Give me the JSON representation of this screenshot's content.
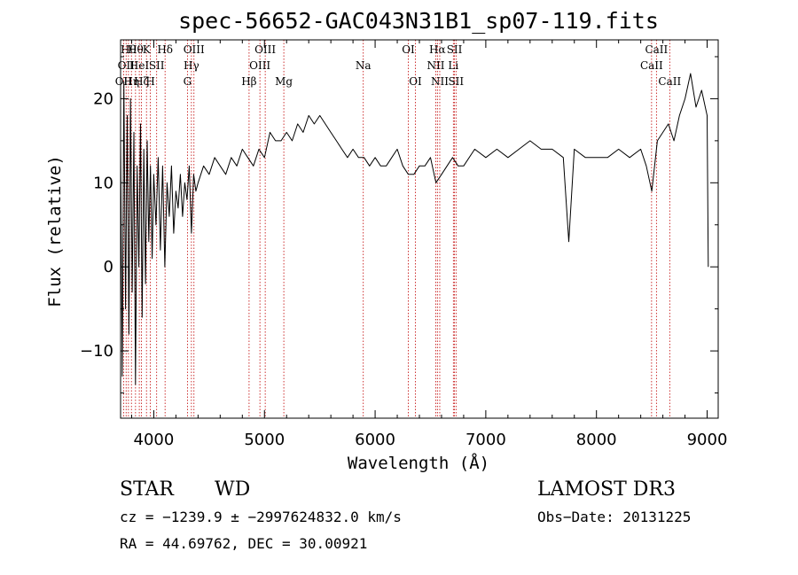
{
  "chart_data": {
    "type": "line",
    "title": "spec-56652-GAC043N31B1_sp07-119.fits",
    "xlabel": "Wavelength (Å)",
    "ylabel": "Flux (relative)",
    "xlim": [
      3700,
      9100
    ],
    "ylim": [
      -18,
      27
    ],
    "xticks": [
      4000,
      5000,
      6000,
      7000,
      8000,
      9000
    ],
    "xtick_labels": [
      "4000",
      "5000",
      "6000",
      "7000",
      "8000",
      "9000"
    ],
    "yticks": [
      -10,
      0,
      10,
      20
    ],
    "ytick_labels": [
      "−10",
      "0",
      "10",
      "20"
    ],
    "grid": false,
    "series": [
      {
        "x": [
          3700,
          3715,
          3730,
          3745,
          3760,
          3775,
          3790,
          3805,
          3820,
          3835,
          3850,
          3865,
          3880,
          3895,
          3910,
          3925,
          3940,
          3955,
          3970,
          3985,
          4000,
          4020,
          4040,
          4060,
          4080,
          4100,
          4120,
          4140,
          4160,
          4180,
          4200,
          4220,
          4240,
          4260,
          4280,
          4300,
          4320,
          4340,
          4360,
          4380,
          4400,
          4450,
          4500,
          4550,
          4600,
          4650,
          4700,
          4750,
          4800,
          4850,
          4900,
          4950,
          5000,
          5050,
          5100,
          5150,
          5200,
          5250,
          5300,
          5350,
          5400,
          5450,
          5500,
          5550,
          5600,
          5650,
          5700,
          5750,
          5800,
          5850,
          5900,
          5950,
          6000,
          6050,
          6100,
          6150,
          6200,
          6250,
          6300,
          6350,
          6400,
          6450,
          6500,
          6550,
          6600,
          6650,
          6700,
          6750,
          6800,
          6900,
          7000,
          7100,
          7200,
          7300,
          7400,
          7500,
          7600,
          7700,
          7750,
          7800,
          7900,
          8000,
          8100,
          8200,
          8300,
          8400,
          8450,
          8500,
          8550,
          8600,
          8650,
          8700,
          8750,
          8800,
          8850,
          8900,
          8950,
          9000,
          9010
        ],
        "y": [
          15,
          -13,
          22,
          -5,
          18,
          -8,
          20,
          -3,
          16,
          -14,
          12,
          0,
          17,
          -6,
          14,
          -2,
          15,
          3,
          12,
          1,
          11,
          5,
          13,
          2,
          12,
          0,
          10,
          6,
          12,
          4,
          9,
          7,
          11,
          6,
          10,
          8,
          12,
          4,
          11,
          9,
          10,
          12,
          11,
          13,
          12,
          11,
          13,
          12,
          14,
          13,
          12,
          14,
          13,
          16,
          15,
          15,
          16,
          15,
          17,
          16,
          18,
          17,
          18,
          17,
          16,
          15,
          14,
          13,
          14,
          13,
          13,
          12,
          13,
          12,
          12,
          13,
          14,
          12,
          11,
          11,
          12,
          12,
          13,
          10,
          11,
          12,
          13,
          12,
          12,
          14,
          13,
          14,
          13,
          14,
          15,
          14,
          14,
          13,
          3,
          14,
          13,
          13,
          13,
          14,
          13,
          14,
          12,
          9,
          15,
          16,
          17,
          15,
          18,
          20,
          23,
          19,
          21,
          18,
          0
        ]
      }
    ],
    "line_markers": [
      {
        "wl": 3727,
        "label": "OII",
        "row": 2
      },
      {
        "wl": 3750,
        "label": "OII",
        "row": 1
      },
      {
        "wl": 3771,
        "label": "Hθ",
        "row": 0
      },
      {
        "wl": 3798,
        "label": "Hη",
        "row": 2
      },
      {
        "wl": 3835,
        "label": "Hθ",
        "row": 0
      },
      {
        "wl": 3869,
        "label": "HeI",
        "row": 1
      },
      {
        "wl": 3889,
        "label": "Hζ",
        "row": 2
      },
      {
        "wl": 3934,
        "label": "K",
        "row": 0
      },
      {
        "wl": 3969,
        "label": "H",
        "row": 2
      },
      {
        "wl": 4026,
        "label": "SII",
        "row": 1
      },
      {
        "wl": 4102,
        "label": "Hδ",
        "row": 0
      },
      {
        "wl": 4304,
        "label": "G",
        "row": 2
      },
      {
        "wl": 4340,
        "label": "Hγ",
        "row": 1
      },
      {
        "wl": 4363,
        "label": "OIII",
        "row": 0
      },
      {
        "wl": 4861,
        "label": "Hβ",
        "row": 2
      },
      {
        "wl": 4959,
        "label": "OIII",
        "row": 1
      },
      {
        "wl": 5007,
        "label": "OIII",
        "row": 0
      },
      {
        "wl": 5175,
        "label": "Mg",
        "row": 2
      },
      {
        "wl": 5893,
        "label": "Na",
        "row": 1
      },
      {
        "wl": 6300,
        "label": "OI",
        "row": 0
      },
      {
        "wl": 6364,
        "label": "OI",
        "row": 2
      },
      {
        "wl": 6548,
        "label": "NII",
        "row": 1
      },
      {
        "wl": 6563,
        "label": "Hα",
        "row": 0
      },
      {
        "wl": 6584,
        "label": "NII",
        "row": 2
      },
      {
        "wl": 6707,
        "label": "Li",
        "row": 1
      },
      {
        "wl": 6717,
        "label": "SII",
        "row": 0
      },
      {
        "wl": 6731,
        "label": "SII",
        "row": 2
      },
      {
        "wl": 8498,
        "label": "CaII",
        "row": 1
      },
      {
        "wl": 8542,
        "label": "CaII",
        "row": 0
      },
      {
        "wl": 8662,
        "label": "CaII",
        "row": 2
      }
    ],
    "colors": {
      "spectrum": "#000000",
      "markers": "#c00000",
      "axes": "#000000"
    }
  },
  "info": {
    "class": "STAR",
    "subclass": "WD",
    "survey": "LAMOST DR3",
    "cz": "cz = −1239.9 ± −2997624832.0 km/s",
    "obsdate": "Obs−Date: 20131225",
    "radec": "RA =  44.69762, DEC =  30.00921"
  }
}
